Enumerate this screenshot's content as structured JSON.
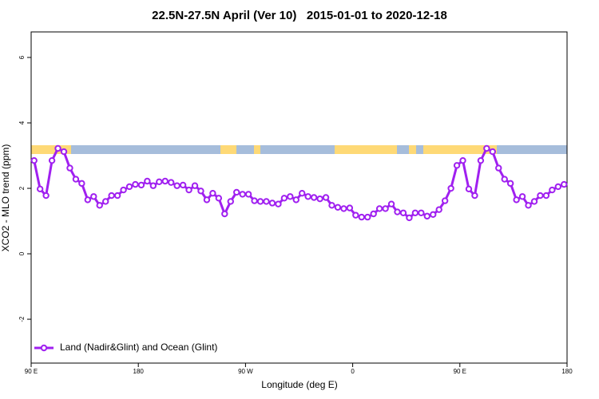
{
  "chart_data": {
    "type": "line",
    "title": "22.5N-27.5N April (Ver 10)   2015-01-01 to 2020-12-18",
    "x_label": "Longitude (deg E)",
    "y_label": "XCO2 - MLO trend (ppm)",
    "xlim": [
      90,
      540
    ],
    "ylim": [
      -3.34,
      6.78
    ],
    "xticks": [
      {
        "value": 90,
        "label": "90 E"
      },
      {
        "value": 180,
        "label": "180"
      },
      {
        "value": 270,
        "label": "90 W"
      },
      {
        "value": 360,
        "label": "0"
      },
      {
        "value": 450,
        "label": "90 E"
      },
      {
        "value": 540,
        "label": "180"
      }
    ],
    "yticks": [
      -2,
      0,
      2,
      4,
      6
    ],
    "legend": "bottom-left",
    "x": [
      92.5,
      97.5,
      102.5,
      107.5,
      112.5,
      117.5,
      122.5,
      127.5,
      132.5,
      137.5,
      142.5,
      147.5,
      152.5,
      157.5,
      162.5,
      167.5,
      172.5,
      177.5,
      182.5,
      187.5,
      192.5,
      197.5,
      202.5,
      207.5,
      212.5,
      217.5,
      222.5,
      227.5,
      232.5,
      237.5,
      242.5,
      247.5,
      252.5,
      257.5,
      262.5,
      267.5,
      272.5,
      277.5,
      282.5,
      287.5,
      292.5,
      297.5,
      302.5,
      307.5,
      312.5,
      317.5,
      322.5,
      327.5,
      332.5,
      337.5,
      342.5,
      347.5,
      352.5,
      357.5,
      362.5,
      367.5,
      372.5,
      377.5,
      382.5,
      387.5,
      392.5,
      397.5,
      402.5,
      407.5,
      412.5,
      417.5,
      422.5,
      427.5,
      432.5,
      437.5,
      442.5,
      447.5,
      452.5,
      457.5,
      462.5,
      467.5,
      472.5,
      477.5,
      482.5,
      487.5,
      492.5,
      497.5,
      502.5,
      507.5,
      512.5,
      517.5,
      522.5,
      527.5,
      532.5,
      537.5
    ],
    "series": [
      {
        "name": "Land (Nadir&Glint) and Ocean (Glint)",
        "color": "#a020f0",
        "values": [
          2.85,
          1.98,
          1.78,
          2.85,
          3.22,
          3.12,
          2.62,
          2.28,
          2.15,
          1.65,
          1.75,
          1.48,
          1.6,
          1.78,
          1.78,
          1.95,
          2.05,
          2.12,
          2.1,
          2.22,
          2.08,
          2.2,
          2.22,
          2.18,
          2.08,
          2.1,
          1.95,
          2.08,
          1.92,
          1.65,
          1.85,
          1.7,
          1.22,
          1.6,
          1.88,
          1.82,
          1.82,
          1.62,
          1.6,
          1.6,
          1.55,
          1.52,
          1.7,
          1.75,
          1.65,
          1.85,
          1.75,
          1.72,
          1.68,
          1.72,
          1.48,
          1.42,
          1.38,
          1.4,
          1.18,
          1.12,
          1.12,
          1.22,
          1.38,
          1.38,
          1.52,
          1.28,
          1.25,
          1.1,
          1.25,
          1.25,
          1.15,
          1.2,
          1.35,
          1.62,
          2.0,
          2.7,
          2.85,
          1.98,
          1.78,
          2.85,
          3.22,
          3.12,
          2.62,
          2.28,
          2.15,
          1.65,
          1.75,
          1.48,
          1.6,
          1.78,
          1.78,
          1.95,
          2.05,
          2.12
        ]
      }
    ]
  }
}
